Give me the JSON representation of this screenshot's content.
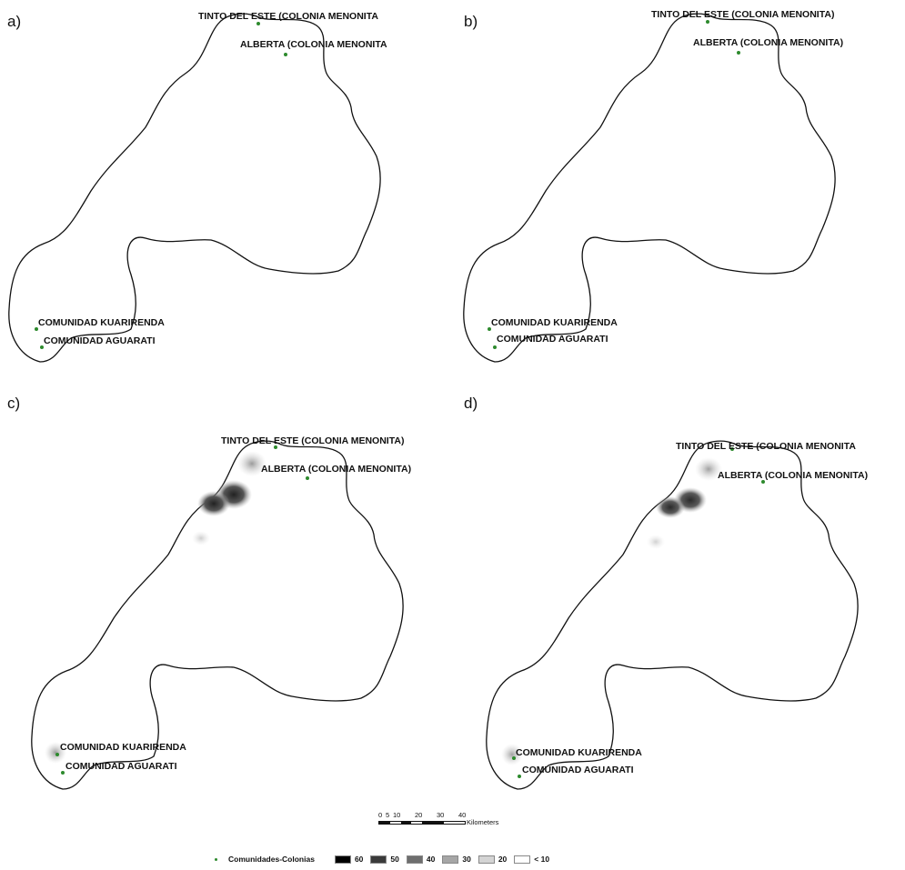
{
  "panels": [
    {
      "id": "a",
      "label": "a)"
    },
    {
      "id": "b",
      "label": "b)"
    },
    {
      "id": "c",
      "label": "c)"
    },
    {
      "id": "d",
      "label": "d)"
    }
  ],
  "places": {
    "tinto_a": "TINTO DEL ESTE (COLONIA MENONITA",
    "tinto_b": "TINTO DEL ESTE (COLONIA MENONITA)",
    "tinto_c": "TINTO DEL ESTE (COLONIA MENONITA)",
    "tinto_d": "TINTO DEL ESTE (COLONIA MENONITA",
    "alberta_a": "ALBERTA (COLONIA MENONITA",
    "alberta_b": "ALBERTA (COLONIA MENONITA)",
    "alberta_c": "ALBERTA (COLONIA MENONITA)",
    "alberta_d": "ALBERTA (COLONIA MENONITA)",
    "kuarirenda": "COMUNIDAD KUARIRENDA",
    "aguarati": "COMUNIDAD AGUARATI"
  },
  "scale": {
    "ticks": [
      "0",
      "5",
      "10",
      "20",
      "30",
      "40"
    ],
    "unit": "Kilometers"
  },
  "legend": {
    "site_label": "Comunidades-Colonias",
    "classes": [
      {
        "label": "60",
        "color": "#000000"
      },
      {
        "label": "50",
        "color": "#3a3a3a"
      },
      {
        "label": "40",
        "color": "#6e6e6e"
      },
      {
        "label": "30",
        "color": "#a6a6a6"
      },
      {
        "label": "20",
        "color": "#d4d4d4"
      },
      {
        "label": "< 10",
        "color": "#ffffff"
      }
    ]
  },
  "colors": {
    "site_marker": "#2d8a2d",
    "boundary": "#111111"
  }
}
